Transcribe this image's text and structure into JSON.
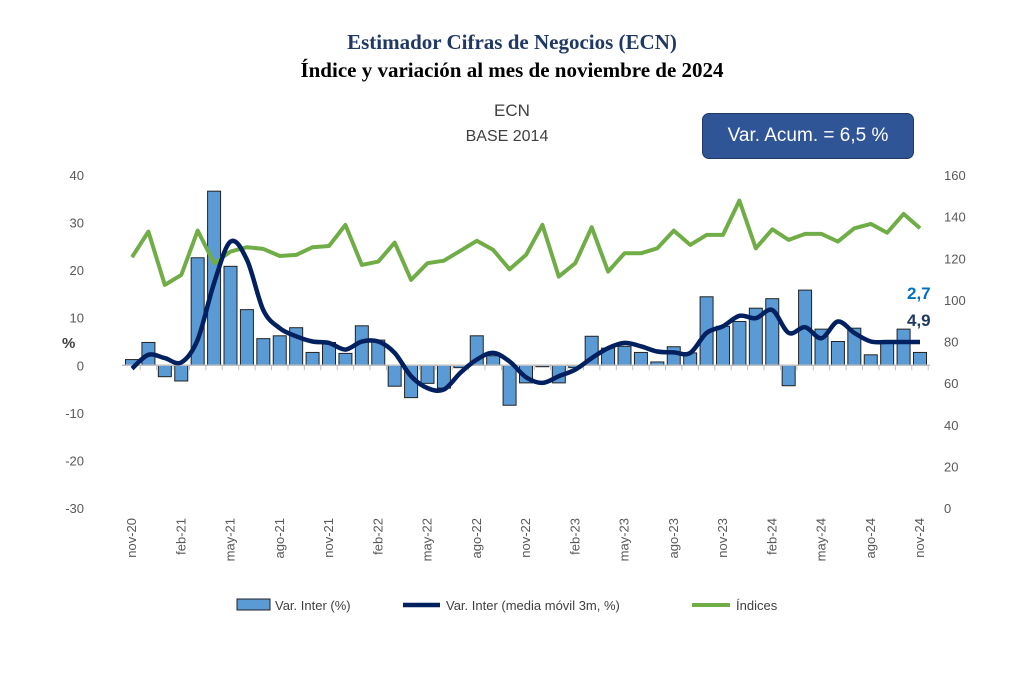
{
  "header": {
    "title": "Estimador Cifras de Negocios (ECN)",
    "subtitle": "Índice y variación al mes de noviembre de 2024",
    "chart_name": "ECN",
    "base": "BASE 2014",
    "acum_label": "Var. Acum. = 6,5 %"
  },
  "colors": {
    "bars": "#5B9BD5",
    "moving_avg": "#002060",
    "index": "#70AD47",
    "box": "#2F5597"
  },
  "chart_data": {
    "type": "bar+line",
    "title": "ECN BASE 2014",
    "ylabel": "%",
    "ylim": [
      -30,
      40
    ],
    "y2lim": [
      0,
      160
    ],
    "yticks": [
      "40",
      "30",
      "20",
      "10",
      "0",
      "-10",
      "-20",
      "-30"
    ],
    "y2ticks": [
      "160",
      "140",
      "120",
      "100",
      "80",
      "60",
      "40",
      "20",
      "0"
    ],
    "xtick_labels": [
      "nov-20",
      "feb-21",
      "may-21",
      "ago-21",
      "nov-21",
      "feb-22",
      "may-22",
      "ago-22",
      "nov-22",
      "feb-23",
      "may-23",
      "ago-23",
      "nov-23",
      "feb-24",
      "may-24",
      "ago-24",
      "nov-24"
    ],
    "n_months": 49,
    "series": [
      {
        "name": "Var. Inter (%)",
        "type": "bar",
        "axis": "left",
        "values": [
          1.2,
          4.8,
          -2.4,
          -3.3,
          22.6,
          36.6,
          20.8,
          11.7,
          5.6,
          6.2,
          7.9,
          2.7,
          4.8,
          2.5,
          8.3,
          5.3,
          -4.4,
          -6.8,
          -3.8,
          -4.8,
          -0.5,
          6.2,
          2.0,
          -8.4,
          -3.7,
          -0.3,
          -3.7,
          -0.5,
          6.1,
          3.6,
          4.0,
          2.7,
          0.7,
          3.9,
          2.6,
          14.4,
          8.2,
          9.2,
          12.0,
          14.0,
          -4.3,
          15.8,
          7.6,
          5.0,
          7.8,
          2.2,
          4.7,
          7.6,
          2.7
        ]
      },
      {
        "name": "Var. Inter (media móvil 3m, %)",
        "type": "line",
        "axis": "left",
        "values": [
          -0.7,
          2.2,
          1.5,
          0.6,
          5.4,
          17.3,
          26.0,
          22.2,
          11.6,
          7.8,
          6.1,
          5.0,
          4.7,
          3.3,
          5.0,
          5.0,
          2.6,
          -2.3,
          -4.8,
          -5.1,
          -1.6,
          1.2,
          2.6,
          0.8,
          -2.5,
          -3.7,
          -2.3,
          -0.9,
          1.5,
          3.6,
          4.7,
          4.0,
          2.9,
          2.7,
          2.6,
          6.8,
          8.2,
          10.4,
          9.9,
          11.6,
          6.8,
          8.0,
          5.7,
          9.2,
          6.8,
          5.0,
          4.9,
          4.9,
          4.9
        ]
      },
      {
        "name": "Índices",
        "type": "line",
        "axis": "right",
        "values": [
          120.5,
          132.8,
          107.2,
          112.0,
          133.3,
          117.6,
          123.2,
          125.3,
          124.5,
          121.1,
          121.6,
          125.3,
          125.9,
          136.0,
          116.8,
          118.4,
          127.5,
          109.6,
          117.6,
          118.8,
          123.6,
          128.4,
          124.0,
          114.7,
          121.6,
          136.0,
          111.2,
          117.6,
          134.9,
          113.6,
          122.4,
          122.4,
          124.8,
          133.3,
          126.4,
          131.2,
          131.2,
          147.7,
          124.8,
          133.9,
          128.8,
          131.7,
          131.7,
          128.0,
          134.4,
          136.5,
          132.3,
          141.3,
          134.4
        ]
      }
    ],
    "annotations": {
      "last_bar": "2,7",
      "last_avg": "4,9"
    },
    "legend_position": "bottom"
  }
}
